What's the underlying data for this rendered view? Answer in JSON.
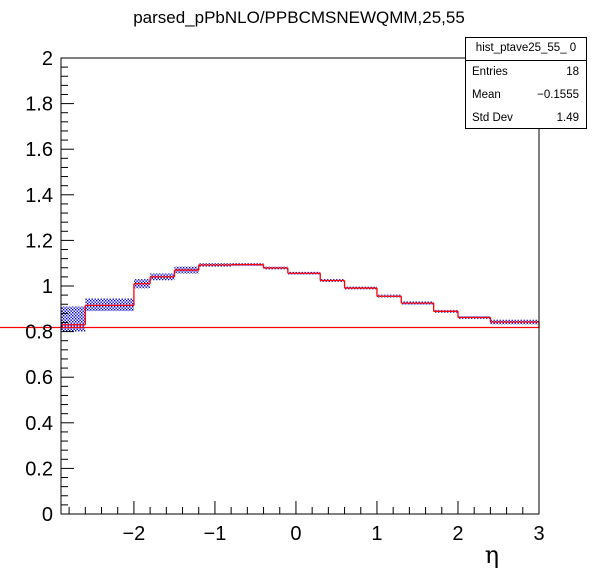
{
  "chart_data": {
    "type": "histogram",
    "title": "parsed_pPbNLO/PPBCMSNEWQMM,25,55",
    "xlabel": "η",
    "ylabel": "",
    "xlim": [
      -2.9,
      3.0
    ],
    "ylim": [
      0,
      2.0
    ],
    "x_ticks": [
      -2,
      -1,
      0,
      1,
      2,
      3
    ],
    "x_tick_labels": [
      "−2",
      "−1",
      "0",
      "1",
      "2",
      "3"
    ],
    "y_ticks": [
      0,
      0.2,
      0.4,
      0.6,
      0.8,
      1,
      1.2,
      1.4,
      1.6,
      1.8,
      2
    ],
    "y_tick_labels": [
      "0",
      "0.2",
      "0.4",
      "0.6",
      "0.8",
      "1",
      "1.2",
      "1.4",
      "1.6",
      "1.8",
      "2"
    ],
    "grid": false,
    "bin_edges": [
      -2.9,
      -2.6,
      -2.0,
      -1.8,
      -1.5,
      -1.2,
      -0.8,
      -0.4,
      -0.1,
      0.3,
      0.6,
      1.0,
      1.3,
      1.7,
      2.0,
      2.4,
      3.0
    ],
    "series": [
      {
        "kind": "step",
        "color": "#ff0000",
        "values": [
          0.83,
          0.915,
          1.01,
          1.04,
          1.07,
          1.092,
          1.094,
          1.079,
          1.056,
          1.024,
          0.991,
          0.955,
          0.925,
          0.889,
          0.862,
          0.842,
          0.818
        ]
      },
      {
        "kind": "error-band",
        "color": "#0000cc",
        "lower": [
          0.8,
          0.89,
          0.99,
          1.025,
          1.055,
          1.085,
          1.088,
          1.073,
          1.05,
          1.018,
          0.985,
          0.95,
          0.918,
          0.883,
          0.856,
          0.832,
          0.8
        ],
        "upper": [
          0.91,
          0.945,
          1.03,
          1.055,
          1.085,
          1.1,
          1.1,
          1.085,
          1.062,
          1.03,
          0.997,
          0.962,
          0.932,
          0.895,
          0.868,
          0.852,
          0.836
        ]
      }
    ],
    "stats_box": {
      "name": "hist_ptave25_55_ 0",
      "rows": [
        {
          "key": "Entries",
          "value": "18"
        },
        {
          "key": "Mean",
          "value": "−0.1555"
        },
        {
          "key": "Std Dev",
          "value": "1.49"
        }
      ],
      "position": "top-right"
    }
  }
}
